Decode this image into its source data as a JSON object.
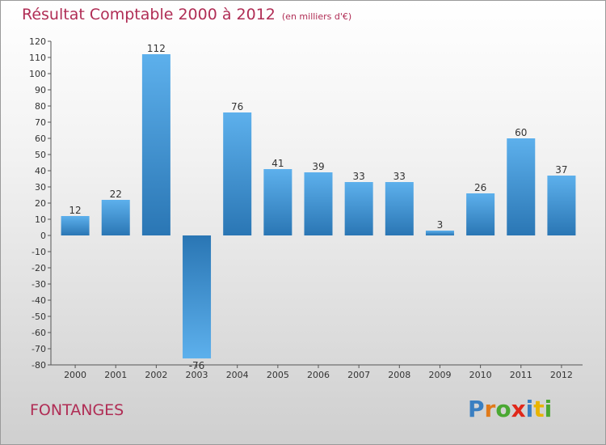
{
  "chart_data": {
    "type": "bar",
    "title": "Résultat Comptable 2000 à 2012",
    "subtitle": "(en milliers d'€)",
    "categories": [
      "2000",
      "2001",
      "2002",
      "2003",
      "2004",
      "2005",
      "2006",
      "2007",
      "2008",
      "2009",
      "2010",
      "2011",
      "2012"
    ],
    "values": [
      12,
      22,
      112,
      -76,
      76,
      41,
      39,
      33,
      33,
      3,
      26,
      60,
      37
    ],
    "ylim": [
      -80,
      120
    ],
    "ytick_step": 10,
    "xlabel": "",
    "ylabel": "",
    "grid": false,
    "bar_color": "#3a8fd6"
  },
  "footer": {
    "commune": "FONTANGES",
    "logo_letters": [
      {
        "ch": "P",
        "color": "#3a7fc1"
      },
      {
        "ch": "r",
        "color": "#e07a1a"
      },
      {
        "ch": "o",
        "color": "#4aa832"
      },
      {
        "ch": "x",
        "color": "#e0281a"
      },
      {
        "ch": "i",
        "color": "#3a7fc1"
      },
      {
        "ch": "t",
        "color": "#e8b400"
      },
      {
        "ch": "i",
        "color": "#4aa832"
      }
    ]
  }
}
